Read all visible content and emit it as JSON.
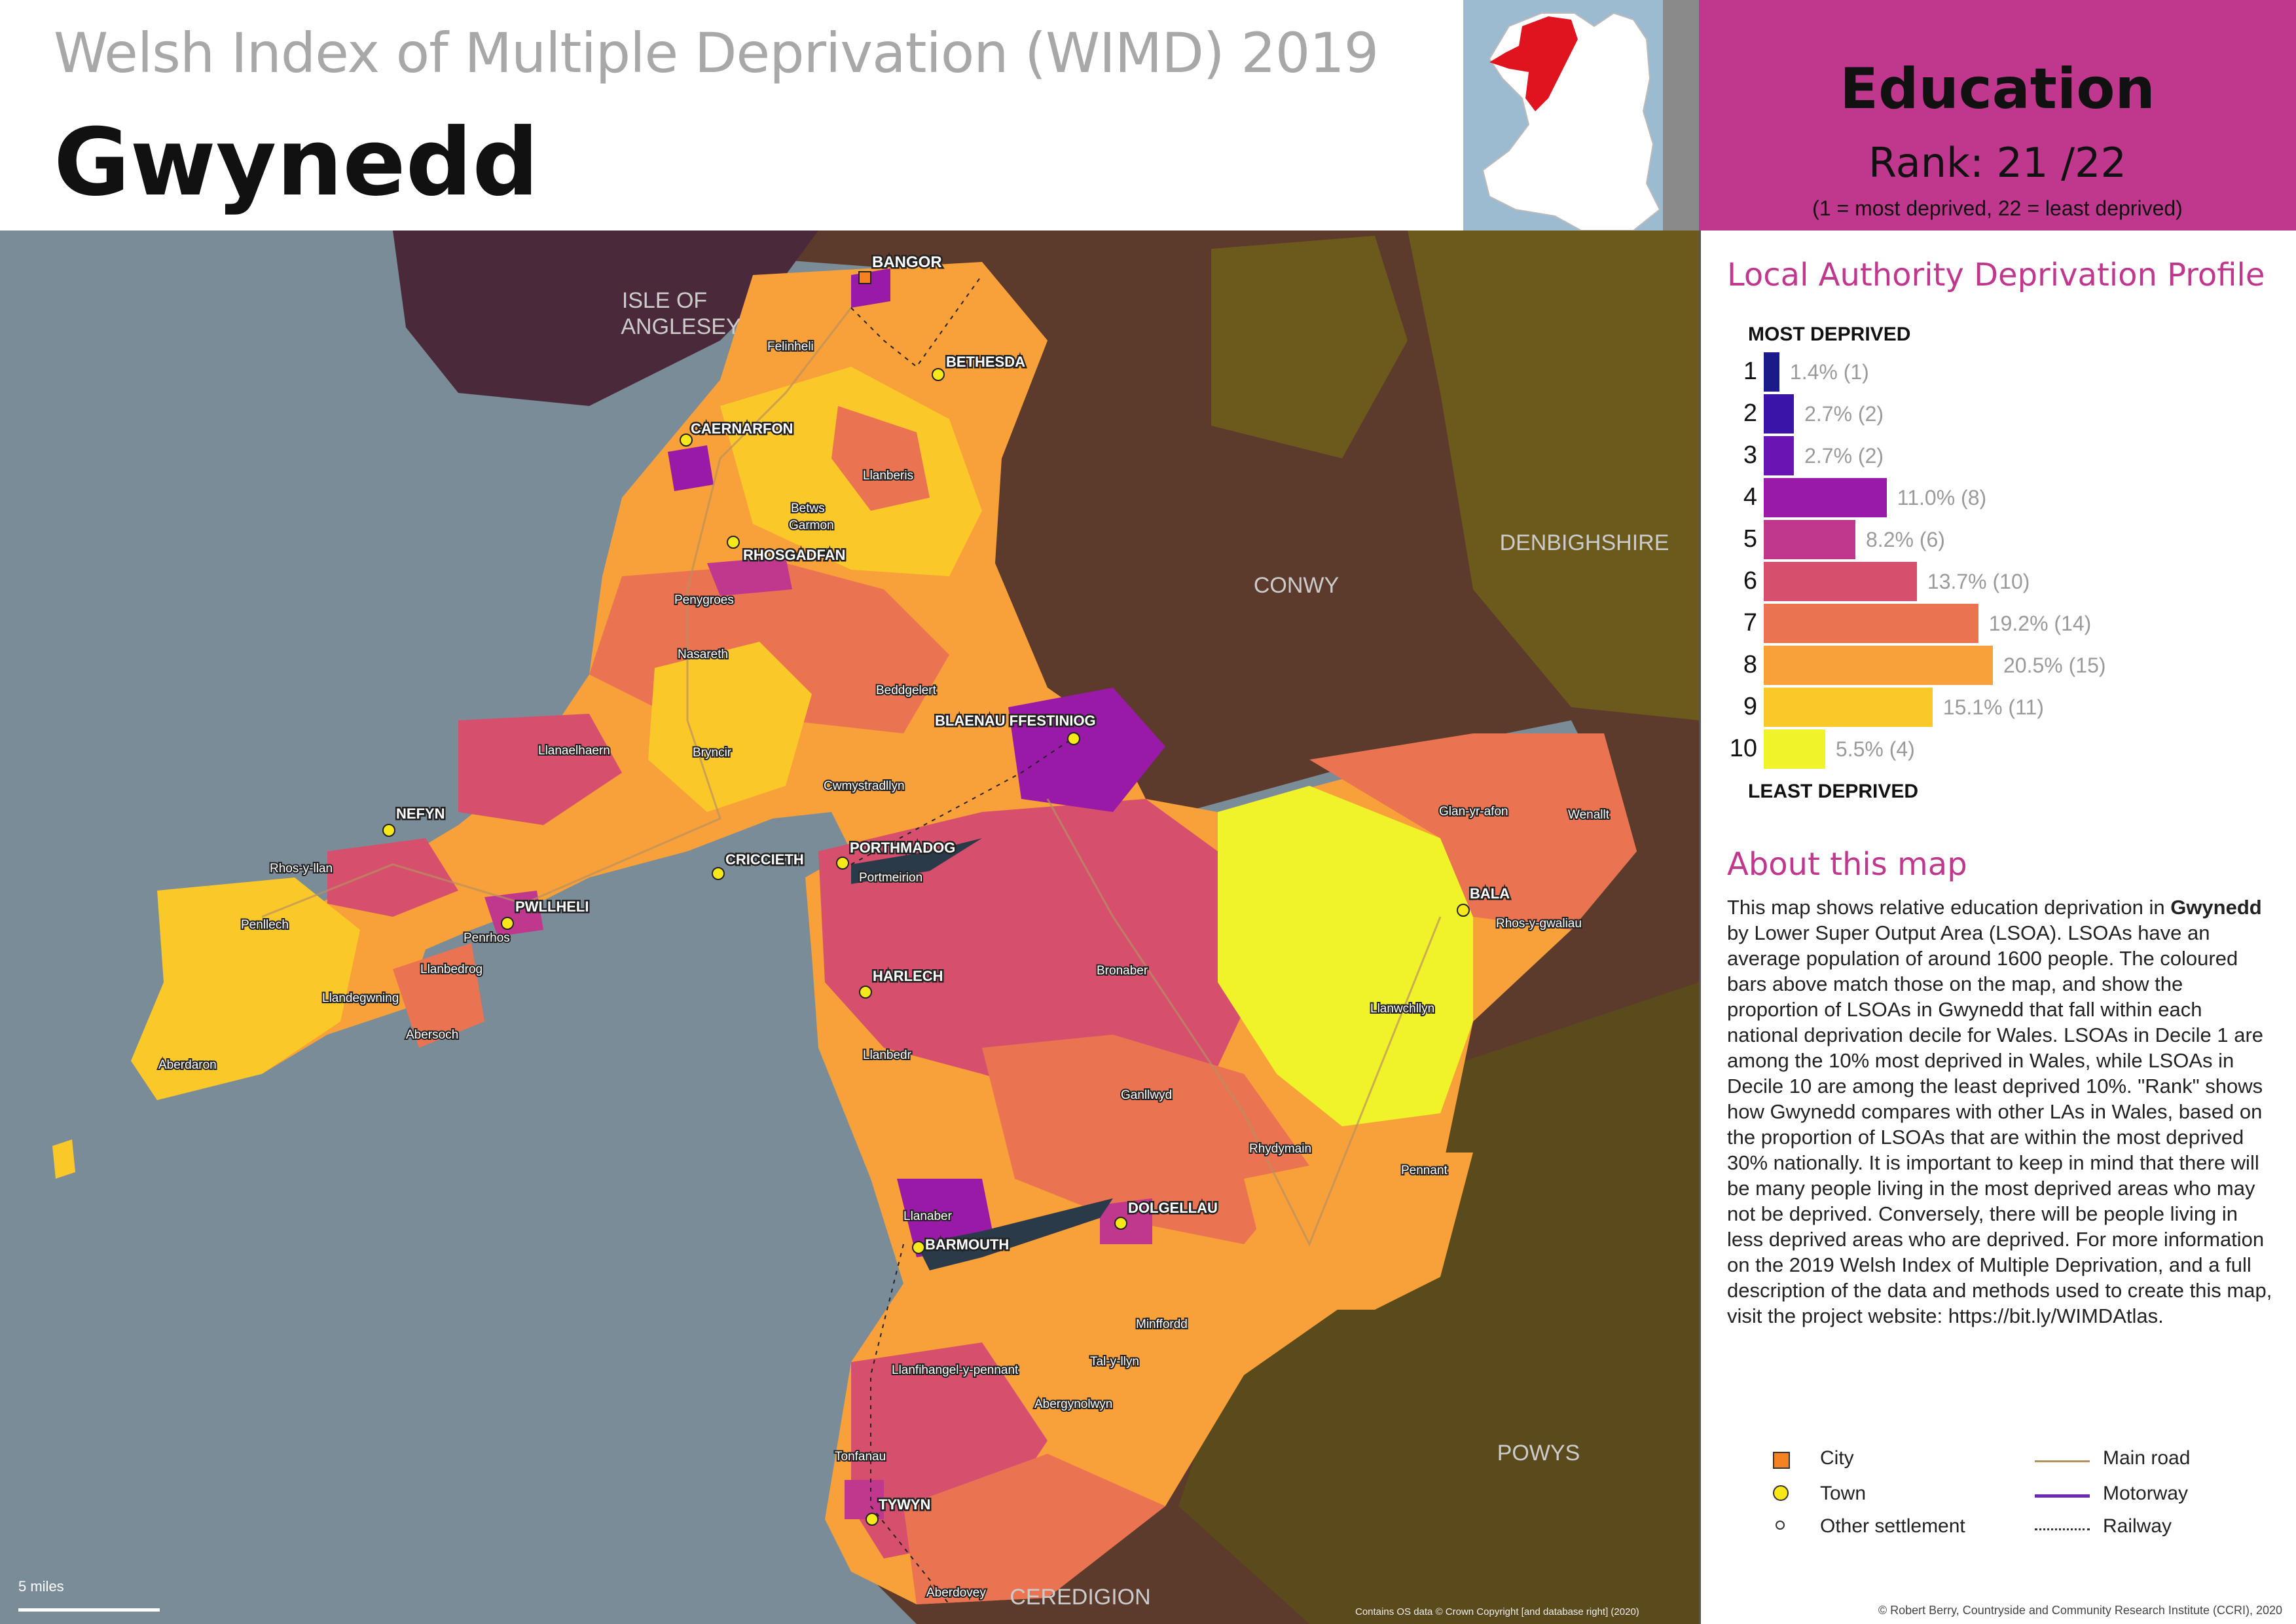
{
  "header": {
    "supertitle": "Welsh Index of Multiple Deprivation (WIMD) 2019",
    "title": "Gwynedd"
  },
  "rank_panel": {
    "domain": "Education",
    "rank": "Rank: 21 /22",
    "note": "(1 =   most deprived, 22 = least deprived)"
  },
  "profile": {
    "heading": "Local Authority Deprivation Profile",
    "top_label": "MOST DEPRIVED",
    "bottom_label": "LEAST DEPRIVED",
    "deciles": [
      {
        "decile": "1",
        "pct": 1.4,
        "label": "1.4% (1)",
        "color": "#1a1a8a"
      },
      {
        "decile": "2",
        "pct": 2.7,
        "label": "2.7% (2)",
        "color": "#3a14a8"
      },
      {
        "decile": "3",
        "pct": 2.7,
        "label": "2.7% (2)",
        "color": "#6a14b4"
      },
      {
        "decile": "4",
        "pct": 11.0,
        "label": "11.0% (8)",
        "color": "#9a1aa8"
      },
      {
        "decile": "5",
        "pct": 8.2,
        "label": "8.2% (6)",
        "color": "#c0388e"
      },
      {
        "decile": "6",
        "pct": 13.7,
        "label": "13.7% (10)",
        "color": "#d6506e"
      },
      {
        "decile": "7",
        "pct": 19.2,
        "label": "19.2% (14)",
        "color": "#ea7452"
      },
      {
        "decile": "8",
        "pct": 20.5,
        "label": "20.5% (15)",
        "color": "#f8a03a"
      },
      {
        "decile": "9",
        "pct": 15.1,
        "label": "15.1% (11)",
        "color": "#fbc82a"
      },
      {
        "decile": "10",
        "pct": 5.5,
        "label": "5.5% (4)",
        "color": "#f0f22a"
      }
    ]
  },
  "about": {
    "heading": "About this map",
    "text_1": "This map shows relative education deprivation in ",
    "text_bold": "Gwynedd",
    "text_2": " by Lower Super Output Area (LSOA). LSOAs have an average population of around 1600 people. The coloured bars above match those on the map, and show the proportion of LSOAs in Gwynedd that fall within each national deprivation decile for Wales. LSOAs in Decile 1 are among the 10% most deprived in Wales, while LSOAs in Decile 10 are among the least deprived 10%. \"Rank\" shows how Gwynedd compares with other LAs in Wales, based on the proportion of LSOAs that are within the most deprived 30% nationally. It is important to keep in mind that there will be many people living in the most deprived areas who may not be deprived. Conversely, there will be people living in less deprived areas who are deprived. For more information on the 2019 Welsh Index of Multiple Deprivation, and a full description of the data and methods used to create this map, visit the project website: https://bit.ly/WIMDAtlas."
  },
  "legend": {
    "city": "City",
    "town": "Town",
    "other": "Other settlement",
    "main_road": "Main road",
    "motorway": "Motorway",
    "railway": "Railway"
  },
  "map": {
    "scale": "5 miles",
    "os_credit": "Contains OS data © Crown Copyright [and database right] (2020)",
    "regions": [
      "ISLE OF",
      "ANGLESEY",
      "CONWY",
      "DENBIGHSHIRE",
      "POWYS",
      "CEREDIGION"
    ],
    "city": "BANGOR",
    "towns": [
      "CAERNARFON",
      "BETHESDA",
      "RHOSGADFAN",
      "BLAENAU FFESTINIOG",
      "NEFYN",
      "PWLLHELI",
      "CRICCIETH",
      "PORTHMADOG",
      "HARLECH",
      "BALA",
      "DOLGELLAU",
      "BARMOUTH",
      "TYWYN"
    ],
    "settlements": [
      "Felinheli",
      "Llanberis",
      "Betws",
      "Garmon",
      "Penygroes",
      "Nasareth",
      "Beddgelert",
      "Llanaelhaern",
      "Bryncir",
      "Cwmystradllyn",
      "Rhos-y-llan",
      "Penllech",
      "Penrhos",
      "Llanbedrog",
      "Llandegwning",
      "Abersoch",
      "Aberdaron",
      "Portmeirion",
      "Llanbedr",
      "Bronaber",
      "Ganllwyd",
      "Rhydymain",
      "Glan-yr-afon",
      "Wenallt",
      "Rhos-y-gwaliau",
      "Llanwchllyn",
      "Pennant",
      "Llanaber",
      "Minffordd",
      "Tal-y-llyn",
      "Llanfihangel-y-pennant",
      "Abergynolwyn",
      "Tonfanau",
      "Aberdovey"
    ]
  },
  "credit": "© Robert Berry, Countryside and Community Research Institute (CCRI), 2020"
}
